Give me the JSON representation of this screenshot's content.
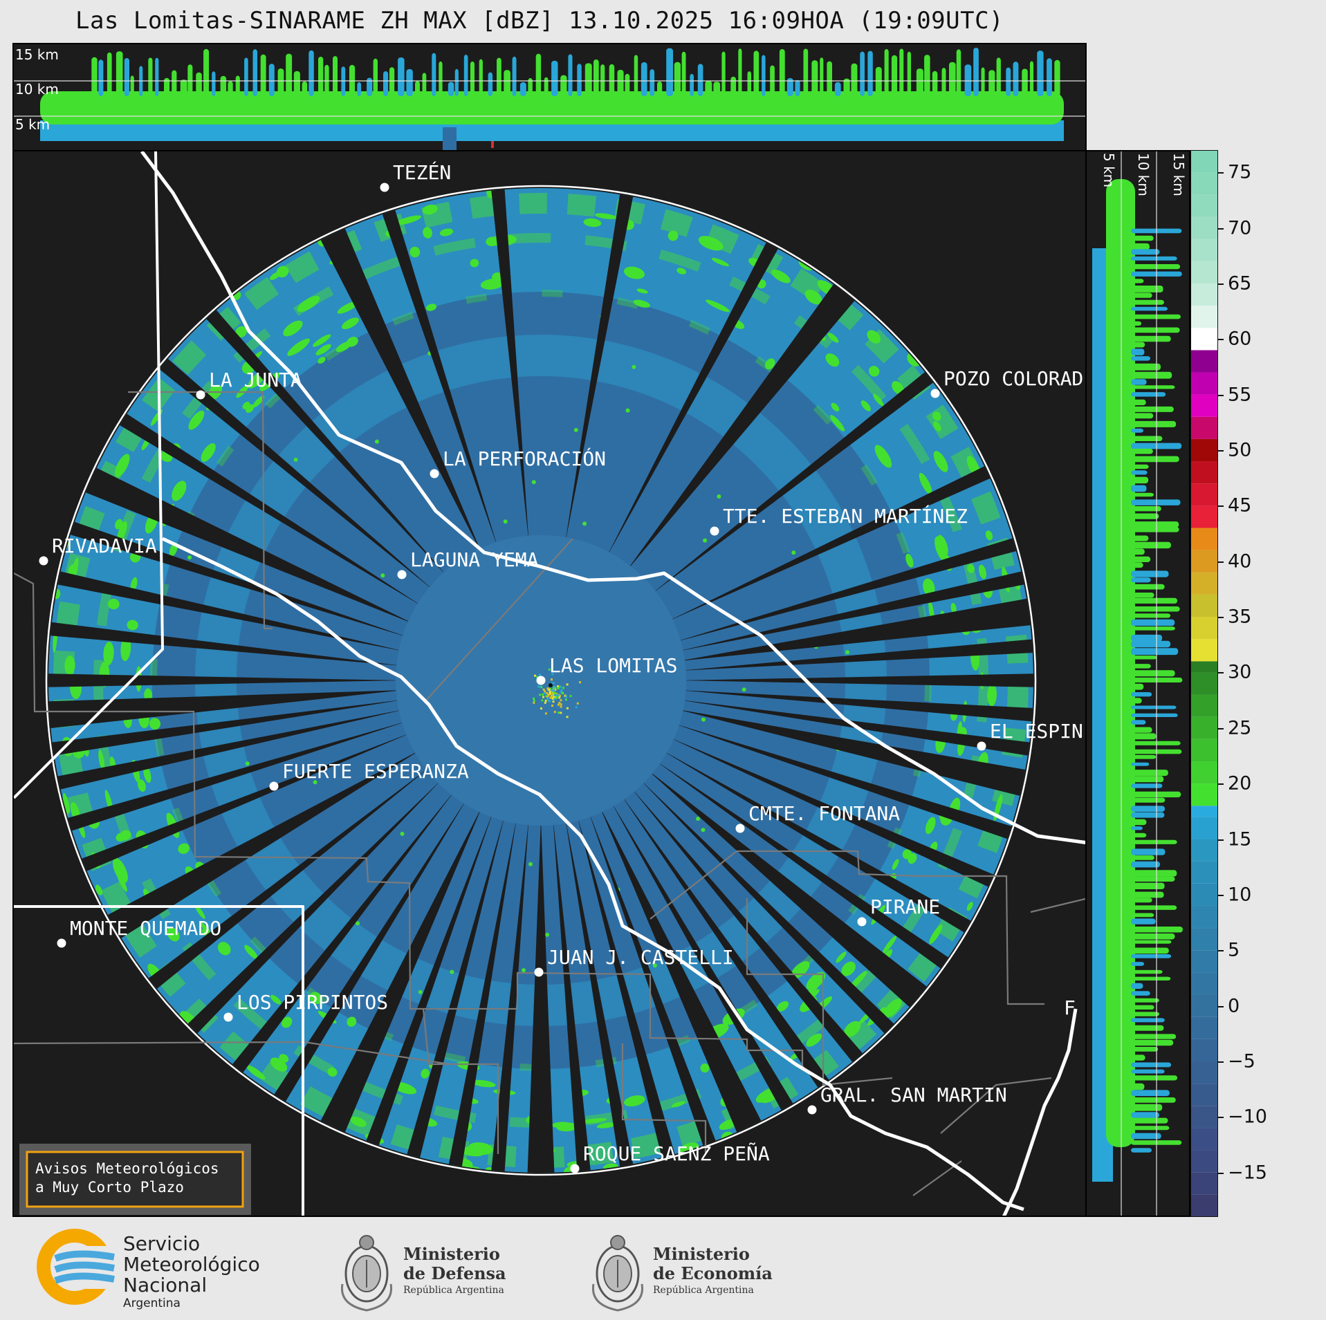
{
  "title": "Las Lomitas-SINARAME ZH MAX [dBZ] 13.10.2025 16:09HOA (19:09UTC)",
  "top_panel": {
    "height_labels": [
      "15 km",
      "10 km",
      "5 km"
    ]
  },
  "right_panel": {
    "height_labels": [
      "5 km",
      "10 km",
      "15 km"
    ]
  },
  "colorbar": {
    "ticks": [
      "75",
      "70",
      "65",
      "60",
      "55",
      "50",
      "45",
      "40",
      "35",
      "30",
      "25",
      "20",
      "15",
      "10",
      "5",
      "0",
      "−5",
      "−10",
      "−15"
    ],
    "min": -19,
    "max": 77
  },
  "places": [
    {
      "name": "TEZÉN"
    },
    {
      "name": "LA JUNTA"
    },
    {
      "name": "POZO COLORAD"
    },
    {
      "name": "LA PERFORACIÓN"
    },
    {
      "name": "TTE. ESTEBAN MARTÍNEZ"
    },
    {
      "name": "RIVADAVIA"
    },
    {
      "name": "LAGUNA YEMA"
    },
    {
      "name": "LAS LOMITAS"
    },
    {
      "name": "EL ESPIN"
    },
    {
      "name": "FUERTE ESPERANZA"
    },
    {
      "name": "CMTE. FONTANA"
    },
    {
      "name": "PIRANE"
    },
    {
      "name": "MONTE QUEMADO"
    },
    {
      "name": "JUAN J. CASTELLI"
    },
    {
      "name": "LOS PIRPINTOS"
    },
    {
      "name": "GRAL. SAN MARTIN"
    },
    {
      "name": "ROQUE SAENZ PEÑA"
    },
    {
      "name": "F"
    }
  ],
  "warning_box": {
    "line1": "Avisos Meteorológicos",
    "line2": "a Muy Corto Plazo"
  },
  "logos": {
    "smn": {
      "line1": "Servicio",
      "line2": "Meteorológico",
      "line3": "Nacional",
      "line4": "Argentina"
    },
    "defensa": {
      "line1": "Ministerio",
      "line2": "de Defensa",
      "line3": "República Argentina"
    },
    "economia": {
      "line1": "Ministerio",
      "line2": "de Economía",
      "line3": "República Argentina"
    }
  },
  "colors": {
    "background": "#1c1c1c",
    "radar_low": "#2f6ea3",
    "radar_mid": "#2aa7d8",
    "radar_green": "#44e030",
    "border_white": "#ffffff",
    "province_gray": "#7a7a7a",
    "warning_orange": "#f2a20f"
  }
}
